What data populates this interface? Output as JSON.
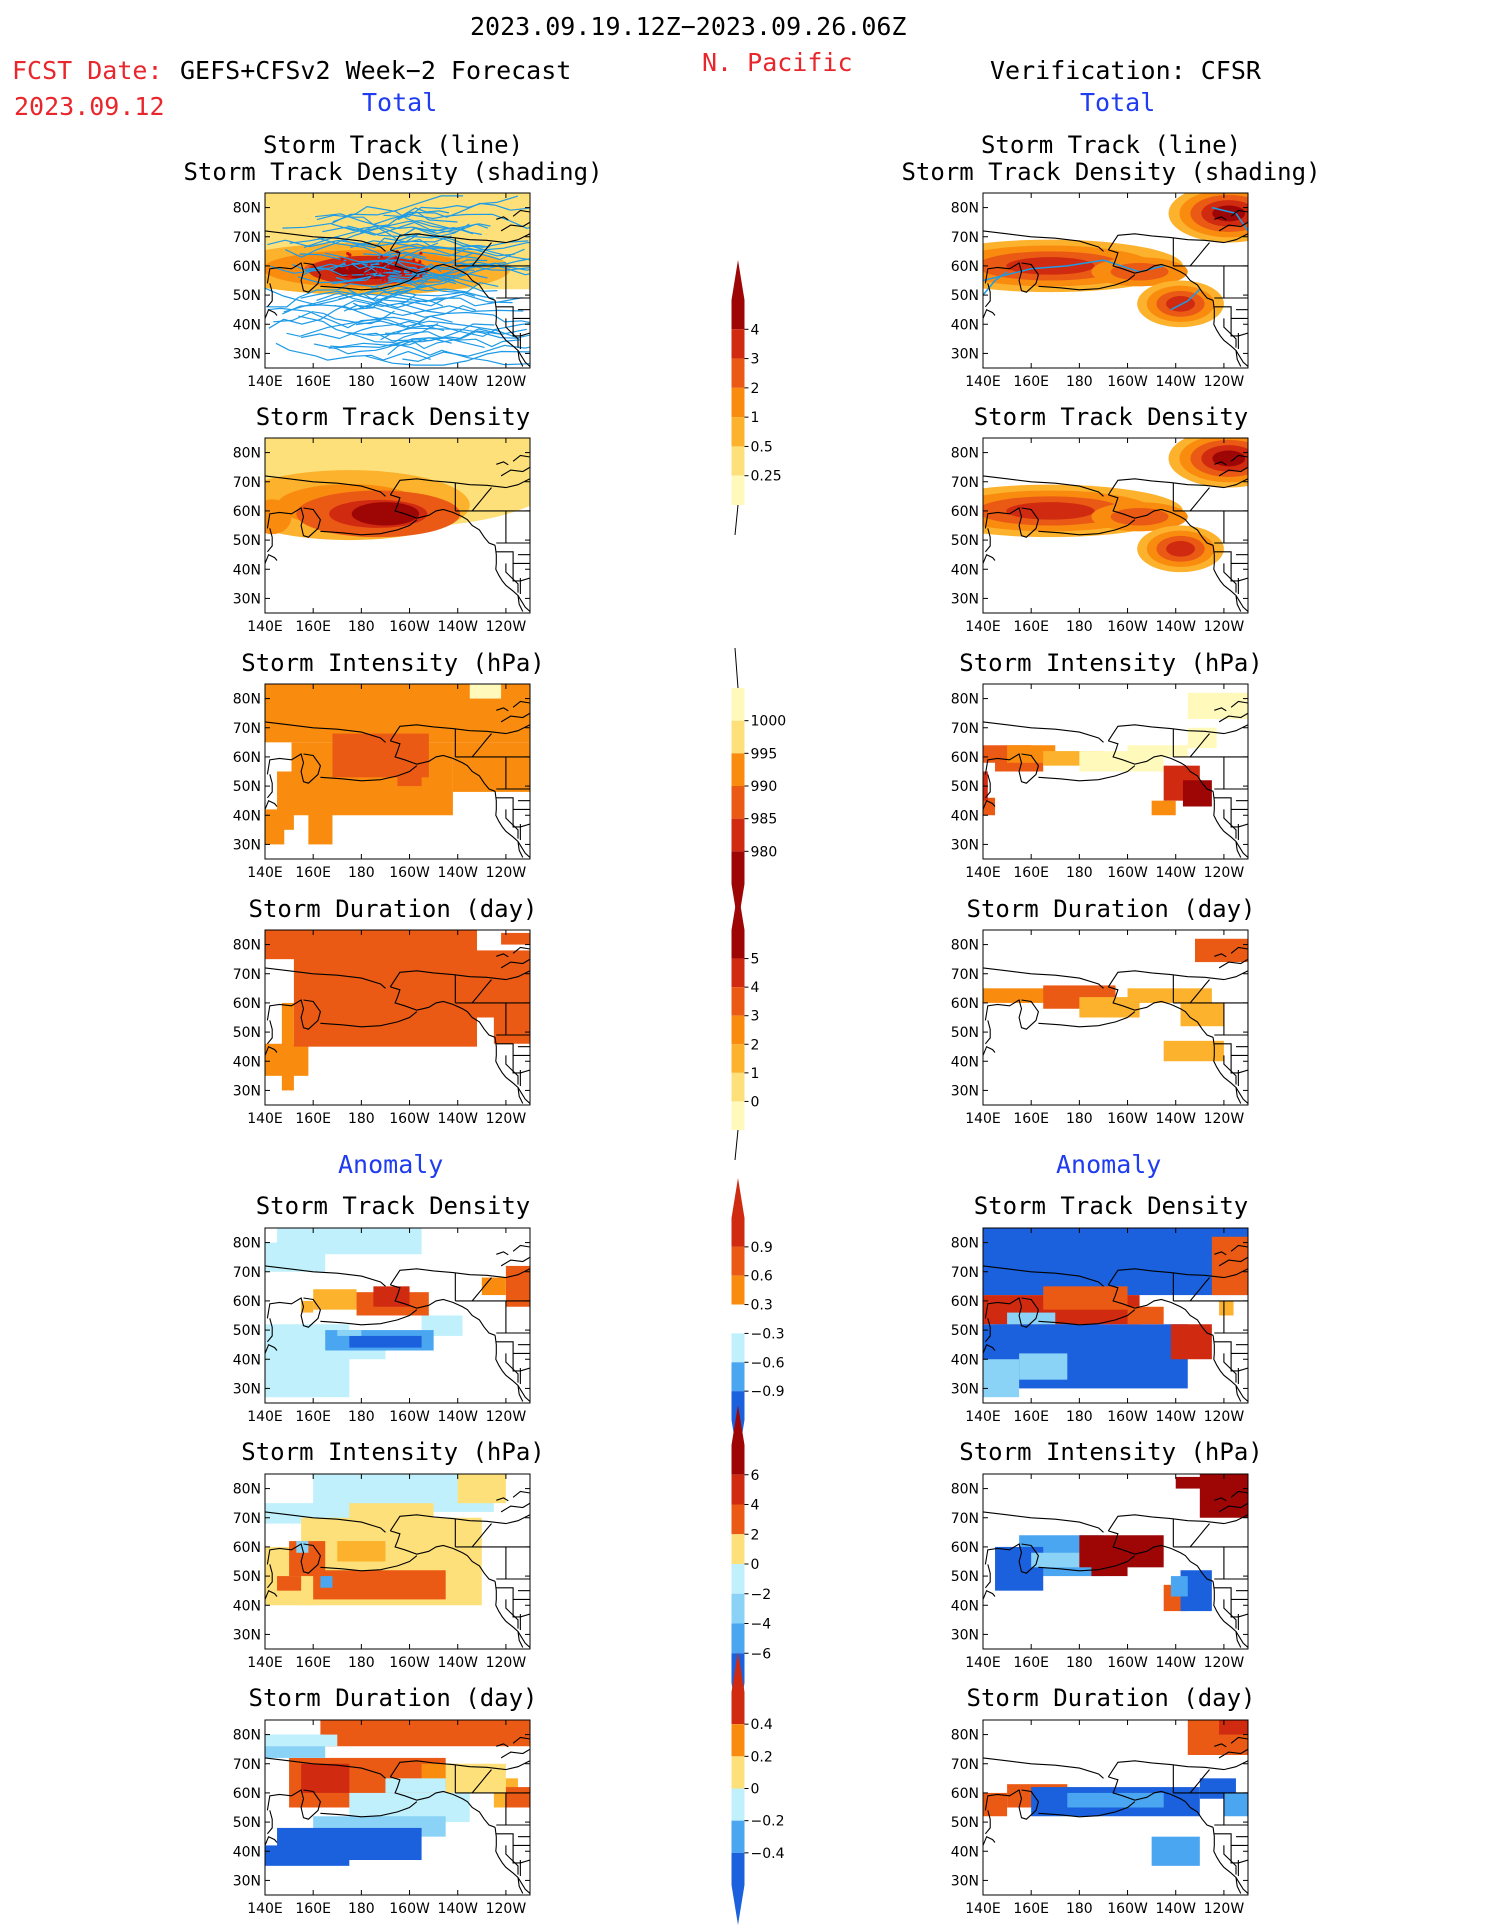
{
  "header": {
    "period": "2023.09.19.12Z−2023.09.26.06Z",
    "fcst_label": "FCST Date:",
    "fcst_value": "GEFS+CFSv2 Week−2 Forecast",
    "fcst_date": "2023.09.12",
    "region": "N. Pacific",
    "verification": "Verification: CFSR",
    "total_left": "Total",
    "total_right": "Total",
    "anomaly_left": "Anomaly",
    "anomaly_right": "Anomaly"
  },
  "colors": {
    "title_red": "#e8262b",
    "section_blue": "#1f3cf0",
    "track_line": "#1e9be6",
    "warm": [
      "#fffabc",
      "#fde07a",
      "#fcb22c",
      "#f98c0f",
      "#ea5a15",
      "#d02a10",
      "#9e0606"
    ],
    "cool": [
      "#bff0fb",
      "#8ad3f7",
      "#4aa6f0",
      "#1b60dd"
    ]
  },
  "panels": {
    "titles": {
      "track_line": "Storm Track (line)",
      "track_shading": "Storm Track Density (shading)",
      "density": "Storm Track Density",
      "intensity": "Storm Intensity (hPa)",
      "duration": "Storm Duration (day)"
    },
    "lat_labels": [
      "80N",
      "70N",
      "60N",
      "50N",
      "40N",
      "30N"
    ],
    "lon_labels": [
      "140E",
      "160E",
      "180",
      "160W",
      "140W",
      "120W"
    ]
  },
  "chart_data": [
    {
      "type": "heatmap",
      "column": "forecast",
      "section": "total",
      "title": "Storm Track (line) / Storm Track Density (shading)",
      "x": [
        140,
        160,
        180,
        200,
        220,
        240
      ],
      "xlabel": "",
      "ylabel": "",
      "ylim": [
        25,
        85
      ],
      "note_features": [
        "density peak near 175W-160W, 55N-65N"
      ]
    },
    {
      "type": "heatmap",
      "column": "forecast",
      "section": "total",
      "title": "Storm Track Density",
      "levels": [
        0.25,
        0.5,
        1,
        2,
        3,
        4
      ]
    },
    {
      "type": "heatmap",
      "column": "forecast",
      "section": "total",
      "title": "Storm Intensity (hPa)",
      "levels": [
        1000,
        995,
        990,
        985,
        980
      ]
    },
    {
      "type": "heatmap",
      "column": "forecast",
      "section": "total",
      "title": "Storm Duration (day)",
      "levels": [
        0,
        1,
        2,
        3,
        4,
        5
      ]
    },
    {
      "type": "heatmap",
      "column": "verification",
      "section": "total",
      "title": "Storm Track (line) / Storm Track Density (shading)"
    },
    {
      "type": "heatmap",
      "column": "verification",
      "section": "total",
      "title": "Storm Track Density"
    },
    {
      "type": "heatmap",
      "column": "verification",
      "section": "total",
      "title": "Storm Intensity (hPa)"
    },
    {
      "type": "heatmap",
      "column": "verification",
      "section": "total",
      "title": "Storm Duration (day)"
    },
    {
      "type": "heatmap",
      "column": "forecast",
      "section": "anomaly",
      "title": "Storm Track Density",
      "levels": [
        -0.9,
        -0.6,
        -0.3,
        0.3,
        0.6,
        0.9
      ]
    },
    {
      "type": "heatmap",
      "column": "forecast",
      "section": "anomaly",
      "title": "Storm Intensity (hPa)",
      "levels": [
        -6,
        -4,
        -2,
        0,
        2,
        4,
        6
      ]
    },
    {
      "type": "heatmap",
      "column": "forecast",
      "section": "anomaly",
      "title": "Storm Duration (day)",
      "levels": [
        -0.4,
        -0.2,
        0,
        0.2,
        0.4
      ]
    },
    {
      "type": "heatmap",
      "column": "verification",
      "section": "anomaly",
      "title": "Storm Track Density"
    },
    {
      "type": "heatmap",
      "column": "verification",
      "section": "anomaly",
      "title": "Storm Intensity (hPa)"
    },
    {
      "type": "heatmap",
      "column": "verification",
      "section": "anomaly",
      "title": "Storm Duration (day)"
    }
  ],
  "colorbars": [
    {
      "id": "track-density-total",
      "labels": [
        "4",
        "3",
        "2",
        "1",
        "0.5",
        "0.25"
      ]
    },
    {
      "id": "intensity-total",
      "labels": [
        "1000",
        "995",
        "990",
        "985",
        "980"
      ]
    },
    {
      "id": "duration-total",
      "labels": [
        "5",
        "4",
        "3",
        "2",
        "1",
        "0"
      ]
    },
    {
      "id": "density-anomaly",
      "labels": [
        "0.9",
        "0.6",
        "0.3",
        "−0.3",
        "−0.6",
        "−0.9"
      ]
    },
    {
      "id": "intensity-anomaly",
      "labels": [
        "6",
        "4",
        "2",
        "0",
        "−2",
        "−4",
        "−6"
      ]
    },
    {
      "id": "duration-anomaly",
      "labels": [
        "0.4",
        "0.2",
        "0",
        "−0.2",
        "−0.4"
      ]
    }
  ]
}
